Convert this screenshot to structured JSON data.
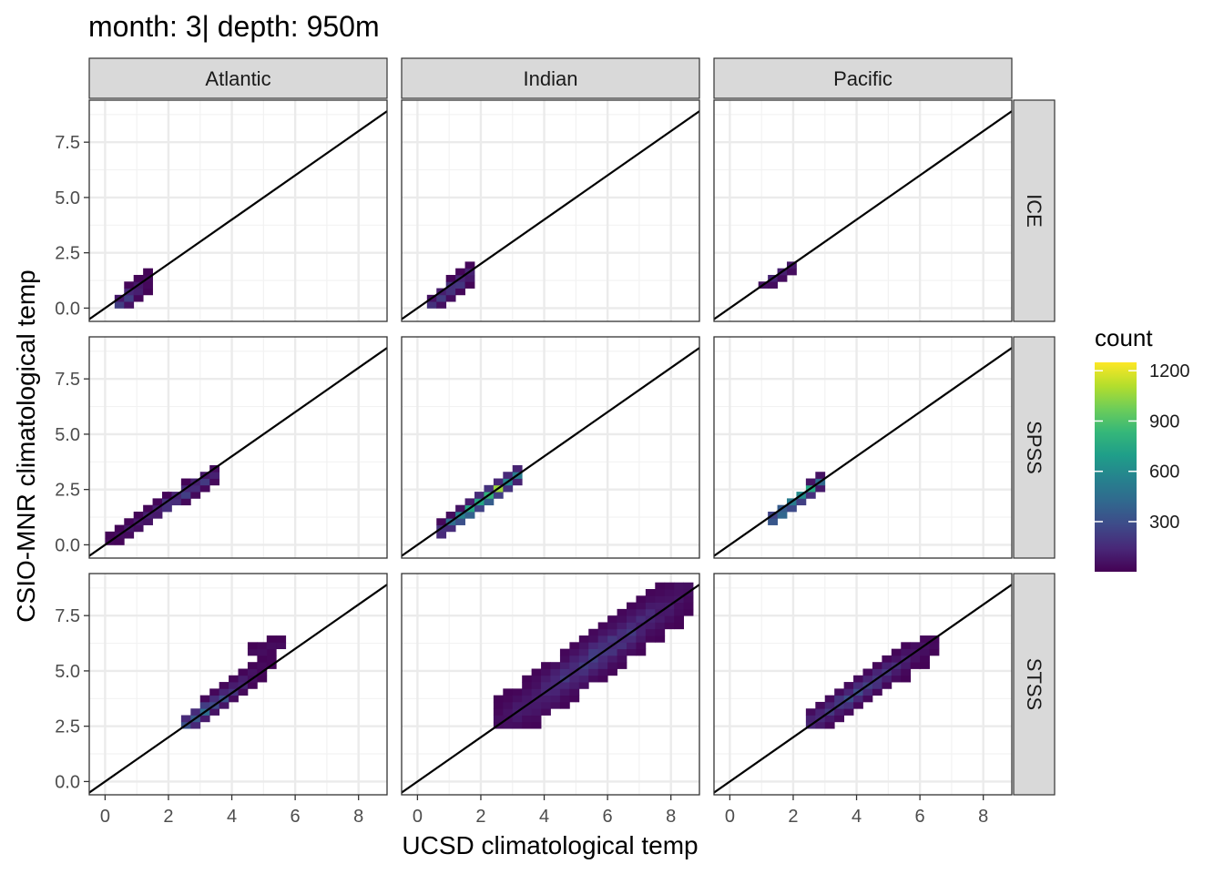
{
  "chart_data": {
    "type": "heatmap",
    "title": "month: 3| depth: 950m",
    "xlabel": "UCSD climatological temp",
    "ylabel": "CSIO-MNR climatological temp",
    "xlim": [
      -0.5,
      8.9
    ],
    "ylim": [
      -0.6,
      9.4
    ],
    "x_ticks": [
      0,
      2,
      4,
      6,
      8
    ],
    "x_tick_labels": [
      "0",
      "2",
      "4",
      "6",
      "8"
    ],
    "y_ticks": [
      0,
      2.5,
      5,
      7.5
    ],
    "y_tick_labels": [
      "0.0",
      "2.5",
      "5.0",
      "7.5"
    ],
    "grid": true,
    "reference_line": {
      "slope": 1,
      "intercept": 0
    },
    "facet_columns": [
      "Atlantic",
      "Indian",
      "Pacific"
    ],
    "facet_rows": [
      "ICE",
      "SPSS",
      "STSS"
    ],
    "bin_width": 0.3,
    "legend": {
      "title": "count",
      "position": "right",
      "min": 1,
      "max": 1250,
      "ticks": [
        300,
        600,
        900,
        1200
      ],
      "tick_labels": [
        "300",
        "600",
        "900",
        "1200"
      ],
      "colors": [
        "#440154",
        "#482878",
        "#3E4A89",
        "#31688E",
        "#26828E",
        "#1F9E89",
        "#35B779",
        "#6DCD59",
        "#B4DE2C",
        "#FDE725"
      ]
    },
    "panels": [
      {
        "column": "Atlantic",
        "row": "ICE",
        "clusters": [
          {
            "x": [
              0.4,
              1.4
            ],
            "y": [
              0.1,
              1.3
            ],
            "w": 0.55,
            "peak": 320,
            "cx": 0.45
          }
        ]
      },
      {
        "column": "Indian",
        "row": "ICE",
        "clusters": [
          {
            "x": [
              0.4,
              1.8
            ],
            "y": [
              0.1,
              1.7
            ],
            "w": 0.5,
            "peak": 300,
            "cx": 1.0
          }
        ]
      },
      {
        "column": "Pacific",
        "row": "ICE",
        "clusters": [
          {
            "x": [
              1.0,
              2.0
            ],
            "y": [
              0.9,
              1.9
            ],
            "w": 0.35,
            "peak": 160,
            "cx": 1.5
          }
        ]
      },
      {
        "column": "Atlantic",
        "row": "SPSS",
        "clusters": [
          {
            "x": [
              0.2,
              3.6
            ],
            "y": [
              0.2,
              3.3
            ],
            "w": 0.45,
            "peak": 280,
            "cx": 2.4
          }
        ]
      },
      {
        "column": "Indian",
        "row": "SPSS",
        "clusters": [
          {
            "x": [
              0.6,
              3.2
            ],
            "y": [
              0.5,
              3.2
            ],
            "w": 0.45,
            "peak": 1250,
            "cx": 2.2
          }
        ]
      },
      {
        "column": "Pacific",
        "row": "SPSS",
        "clusters": [
          {
            "x": [
              1.1,
              3.0
            ],
            "y": [
              0.9,
              3.0
            ],
            "w": 0.4,
            "peak": 1050,
            "cx": 2.1
          }
        ]
      },
      {
        "column": "Atlantic",
        "row": "STSS",
        "clusters": [
          {
            "x": [
              2.6,
              5.2
            ],
            "y": [
              2.6,
              5.4
            ],
            "w": 0.55,
            "peak": 480,
            "cx": 3.0
          },
          {
            "x": [
              4.6,
              5.8
            ],
            "y": [
              5.8,
              6.3
            ],
            "w": 0.35,
            "peak": 60,
            "cx": 5.2
          }
        ]
      },
      {
        "column": "Indian",
        "row": "STSS",
        "clusters": [
          {
            "x": [
              2.4,
              8.5
            ],
            "y": [
              2.4,
              8.6
            ],
            "w": 1.3,
            "peak": 260,
            "cx": 5.6
          }
        ]
      },
      {
        "column": "Pacific",
        "row": "STSS",
        "clusters": [
          {
            "x": [
              2.4,
              6.4
            ],
            "y": [
              2.5,
              6.3
            ],
            "w": 0.75,
            "peak": 320,
            "cx": 3.9
          }
        ]
      }
    ]
  }
}
